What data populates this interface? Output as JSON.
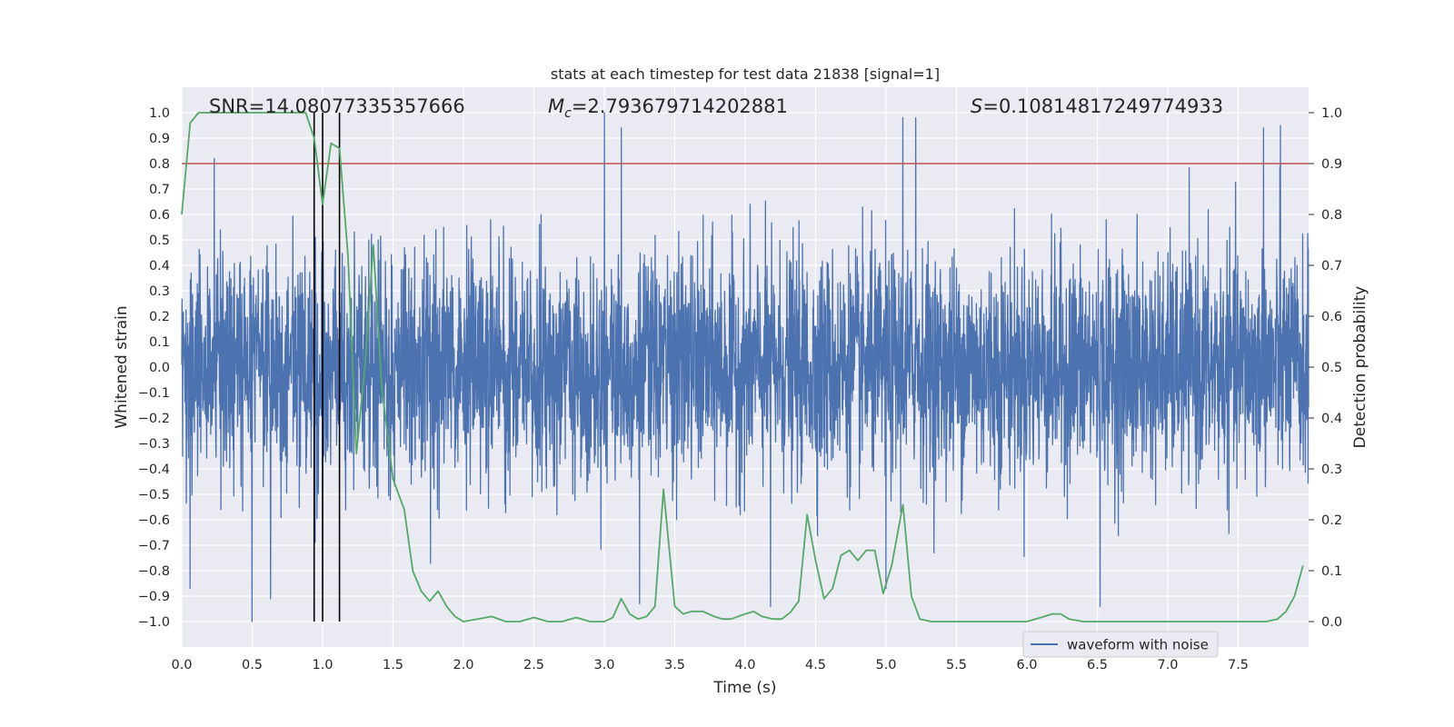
{
  "chart_data": {
    "type": "line",
    "title": "stats at each timestep for test data 21838 [signal=1]",
    "xlabel": "Time (s)",
    "ylabel_left": "Whitened strain",
    "ylabel_right": "Detection probability",
    "xlim": [
      0.0,
      8.0
    ],
    "ylim_left": [
      -1.1,
      1.1
    ],
    "ylim_right": [
      -0.05,
      1.05
    ],
    "xticks": [
      "0.0",
      "0.5",
      "1.0",
      "1.5",
      "2.0",
      "2.5",
      "3.0",
      "3.5",
      "4.0",
      "4.5",
      "5.0",
      "5.5",
      "6.0",
      "6.5",
      "7.0",
      "7.5"
    ],
    "yticks_left": [
      "1.0",
      "0.9",
      "0.8",
      "0.7",
      "0.6",
      "0.5",
      "0.4",
      "0.3",
      "0.2",
      "0.1",
      "0.0",
      "−0.1",
      "−0.2",
      "−0.3",
      "−0.4",
      "−0.5",
      "−0.6",
      "−0.7",
      "−0.8",
      "−0.9",
      "−1.0"
    ],
    "yticks_right": [
      "1.0",
      "0.9",
      "0.8",
      "0.7",
      "0.6",
      "0.5",
      "0.4",
      "0.3",
      "0.2",
      "0.1",
      "0.0"
    ],
    "grid": true,
    "legend_position": "lower-right",
    "annotations": {
      "snr": "SNR=14.08077335357666",
      "mc_symbol": "M",
      "mc_sub": "c",
      "mc_value": "=2.793679714202881",
      "s_symbol": "S",
      "s_value": "=0.10814817249774933"
    },
    "threshold": {
      "value": 0.9,
      "axis": "right",
      "color": "#c44e52"
    },
    "vlines_x": [
      0.94,
      1.0,
      1.12
    ],
    "series": [
      {
        "name": "waveform with noise",
        "axis": "left",
        "color": "#4c72b0",
        "noise_std": 0.22,
        "spikes": [
          {
            "x": 0.5,
            "y": -1.0
          },
          {
            "x": 0.63,
            "y": -0.91
          },
          {
            "x": 0.06,
            "y": -0.87
          },
          {
            "x": 0.23,
            "y": 0.82
          },
          {
            "x": 3.0,
            "y": 1.0
          },
          {
            "x": 3.12,
            "y": 0.94
          },
          {
            "x": 5.12,
            "y": 0.98
          },
          {
            "x": 5.21,
            "y": 0.98
          },
          {
            "x": 7.8,
            "y": 0.95
          },
          {
            "x": 7.68,
            "y": 0.94
          },
          {
            "x": 6.52,
            "y": -0.94
          },
          {
            "x": 4.18,
            "y": -0.94
          },
          {
            "x": 3.25,
            "y": -0.93
          },
          {
            "x": 5.0,
            "y": -0.87
          },
          {
            "x": 1.0,
            "y": -0.87
          }
        ]
      },
      {
        "name": "detection probability",
        "axis": "right",
        "color": "#55a868",
        "x": [
          0.0,
          0.06,
          0.12,
          0.18,
          0.3,
          0.5,
          0.7,
          0.88,
          0.94,
          1.0,
          1.06,
          1.12,
          1.18,
          1.24,
          1.3,
          1.36,
          1.42,
          1.5,
          1.58,
          1.64,
          1.7,
          1.76,
          1.82,
          1.88,
          1.94,
          2.0,
          2.1,
          2.2,
          2.3,
          2.4,
          2.5,
          2.6,
          2.7,
          2.8,
          2.9,
          3.0,
          3.06,
          3.12,
          3.18,
          3.24,
          3.3,
          3.36,
          3.42,
          3.5,
          3.56,
          3.62,
          3.7,
          3.78,
          3.84,
          3.9,
          4.0,
          4.06,
          4.12,
          4.2,
          4.26,
          4.32,
          4.38,
          4.44,
          4.5,
          4.56,
          4.62,
          4.68,
          4.74,
          4.8,
          4.86,
          4.92,
          4.98,
          5.04,
          5.12,
          5.18,
          5.24,
          5.32,
          5.5,
          5.7,
          5.9,
          6.0,
          6.1,
          6.18,
          6.24,
          6.3,
          6.4,
          6.6,
          6.8,
          7.0,
          7.2,
          7.4,
          7.6,
          7.7,
          7.78,
          7.84,
          7.9,
          7.96
        ],
        "y": [
          0.8,
          0.98,
          1.0,
          1.0,
          1.0,
          1.0,
          1.0,
          1.0,
          0.95,
          0.82,
          0.94,
          0.93,
          0.72,
          0.33,
          0.5,
          0.74,
          0.46,
          0.28,
          0.22,
          0.1,
          0.06,
          0.04,
          0.06,
          0.03,
          0.01,
          0.0,
          0.005,
          0.01,
          0.0,
          0.0,
          0.008,
          0.0,
          0.0,
          0.008,
          0.0,
          0.0,
          0.008,
          0.045,
          0.015,
          0.005,
          0.01,
          0.03,
          0.26,
          0.03,
          0.015,
          0.02,
          0.02,
          0.01,
          0.005,
          0.005,
          0.015,
          0.02,
          0.01,
          0.005,
          0.005,
          0.018,
          0.04,
          0.21,
          0.12,
          0.045,
          0.065,
          0.13,
          0.14,
          0.12,
          0.14,
          0.14,
          0.055,
          0.11,
          0.23,
          0.05,
          0.005,
          0.0,
          0.0,
          0.0,
          0.0,
          0.0,
          0.008,
          0.015,
          0.015,
          0.005,
          0.0,
          0.0,
          0.0,
          0.0,
          0.0,
          0.0,
          0.0,
          0.0,
          0.005,
          0.02,
          0.05,
          0.11
        ]
      }
    ]
  }
}
